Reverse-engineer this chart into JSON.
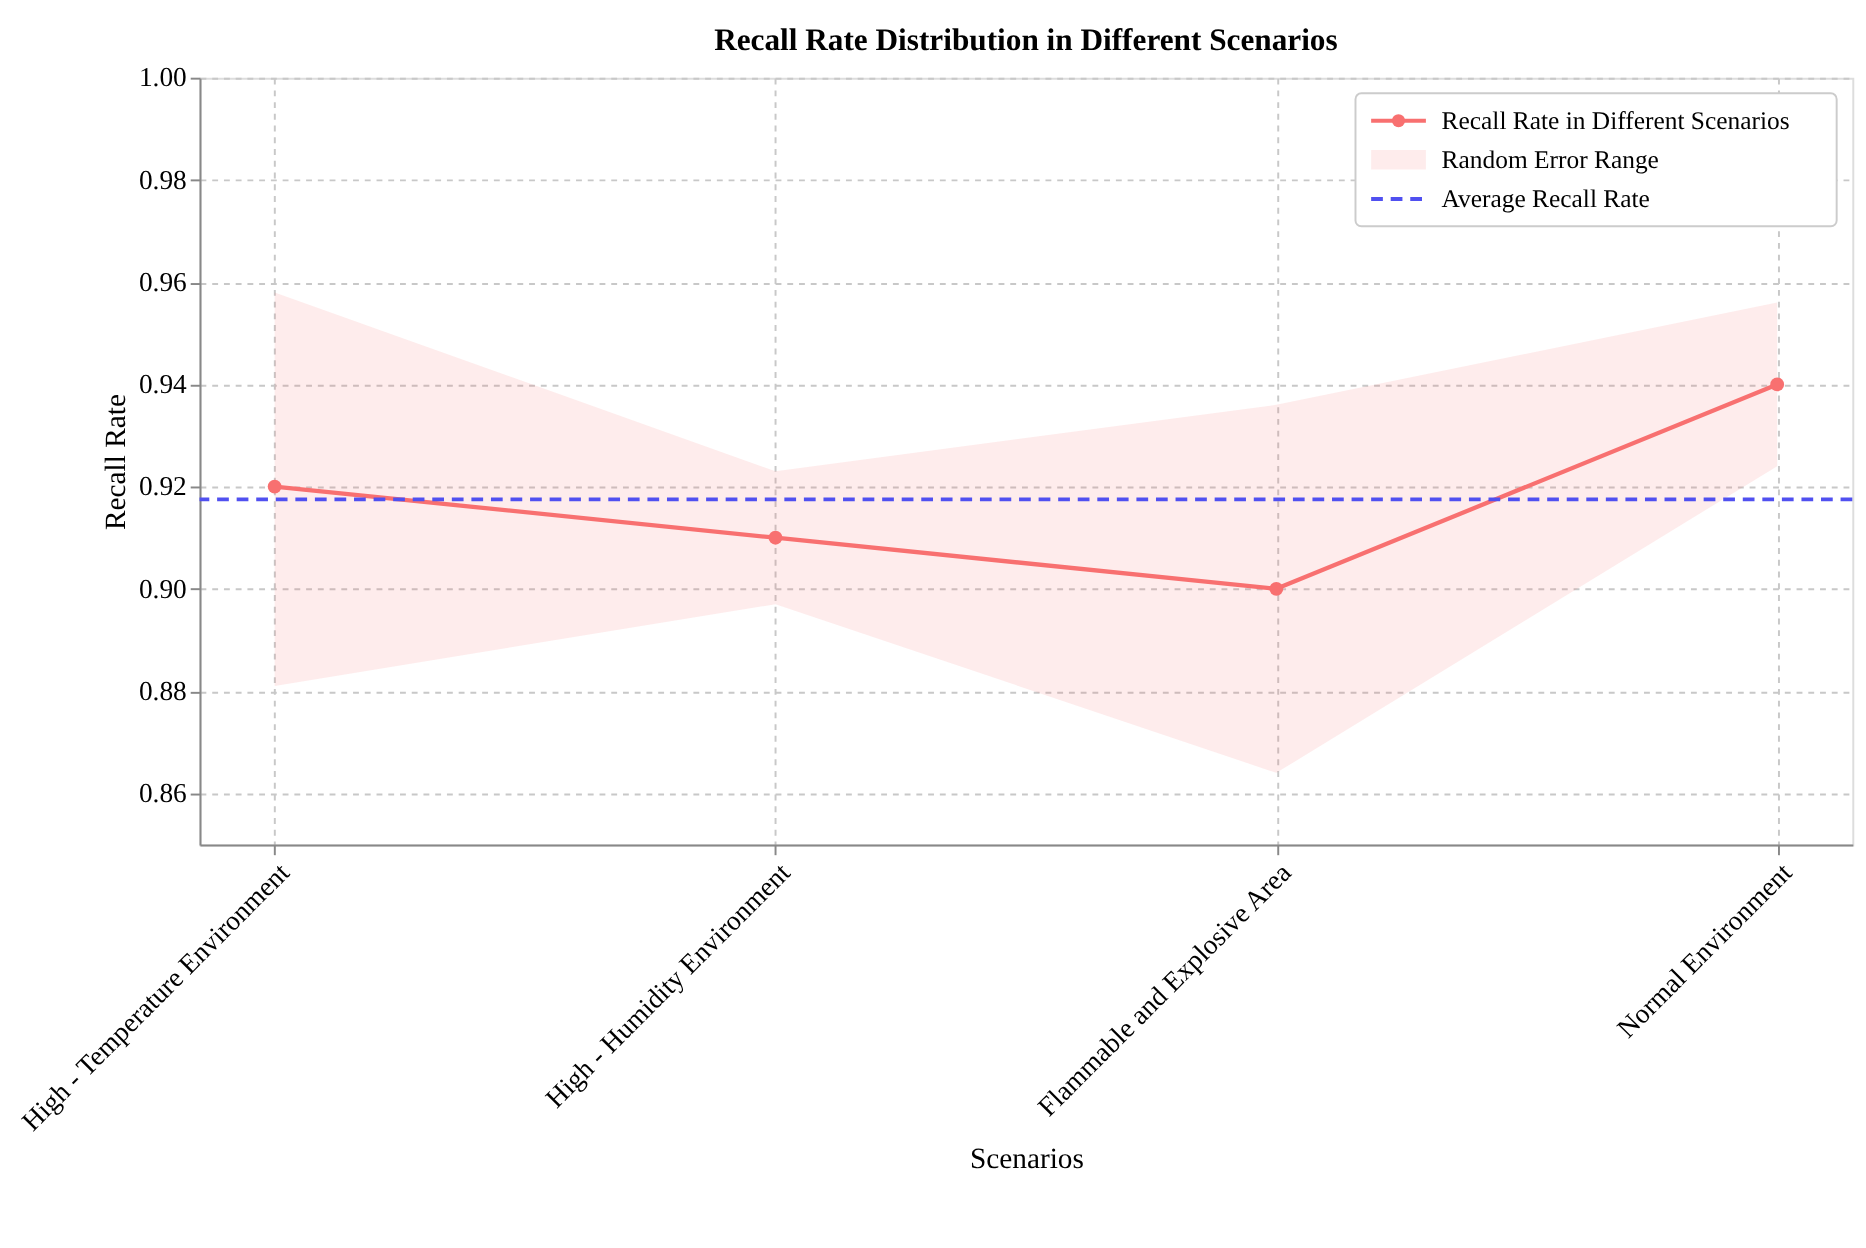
{
  "chart_data": {
    "type": "line",
    "title": "Recall Rate Distribution in Different Scenarios",
    "xlabel": "Scenarios",
    "ylabel": "Recall Rate",
    "categories": [
      "High - Temperature Environment",
      "High - Humidity Environment",
      "Flammable and Explosive Area",
      "Normal Environment"
    ],
    "series": [
      {
        "name": "Recall Rate in Different Scenarios",
        "color": "#f87070",
        "values": [
          0.92,
          0.91,
          0.9,
          0.94
        ],
        "lower": [
          0.881,
          0.897,
          0.864,
          0.924
        ],
        "upper": [
          0.958,
          0.923,
          0.936,
          0.956
        ]
      }
    ],
    "annotations": [
      "Random Error Range"
    ],
    "ref_lines": [
      {
        "axis": "y",
        "value": 0.9175,
        "label": "Average Recall Rate",
        "color": "#5050f0",
        "line_style": "dashed"
      }
    ],
    "ylim": [
      0.85,
      1.0
    ],
    "yticks": [
      0.86,
      0.88,
      {
        "value": 0.9,
        "label": "0.90"
      },
      0.92,
      0.94,
      0.96,
      0.98,
      {
        "value": 1.0,
        "label": "1.00"
      }
    ],
    "grid": true,
    "legend": "top right",
    "marker": "circle",
    "line_style": "solid"
  }
}
